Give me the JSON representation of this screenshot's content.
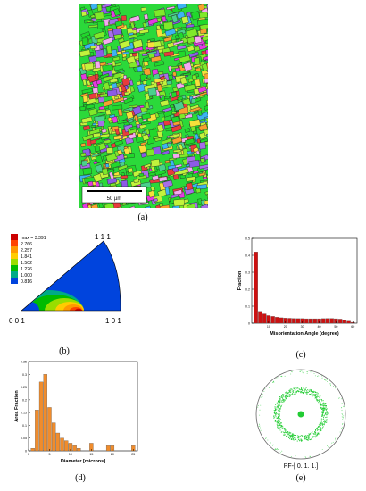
{
  "panel_a": {
    "caption": "(a)",
    "scalebar_label": "50 µm",
    "colors": [
      "#21d82b",
      "#7fe92a",
      "#c2f33c",
      "#8c5be6",
      "#e43ae0",
      "#f5a8f0",
      "#e83c3c",
      "#f9a030",
      "#f7e03a",
      "#3db3f2",
      "#a76de8",
      "#4ad18c"
    ]
  },
  "panel_b": {
    "caption": "(b)",
    "legend": [
      "max = 3.391",
      "2.766",
      "2.257",
      "1.841",
      "1.502",
      "1.226",
      "1.000",
      "0.816"
    ],
    "legend_colors": [
      "#cc0000",
      "#ff4400",
      "#ff9900",
      "#ffcc00",
      "#99dd00",
      "#00bb00",
      "#00aa88",
      "#0044dd"
    ],
    "corner_top": "1 1 1",
    "corner_left": "0 0 1",
    "corner_right": "1 0 1"
  },
  "panel_c": {
    "caption": "(c)",
    "chart_data": {
      "type": "bar",
      "xlabel": "Misorientation Angle (degree)",
      "ylabel": "Fraction",
      "x": [
        2.5,
        5,
        7.5,
        10,
        12.5,
        15,
        17.5,
        20,
        22.5,
        25,
        27.5,
        30,
        32.5,
        35,
        37.5,
        40,
        42.5,
        45,
        47.5,
        50,
        52.5,
        55,
        57.5,
        60
      ],
      "values": [
        0.42,
        0.07,
        0.055,
        0.045,
        0.04,
        0.035,
        0.032,
        0.03,
        0.029,
        0.028,
        0.027,
        0.027,
        0.026,
        0.026,
        0.026,
        0.026,
        0.027,
        0.028,
        0.028,
        0.026,
        0.024,
        0.02,
        0.012,
        0.005
      ],
      "ylim": [
        0,
        0.5
      ],
      "xlim": [
        0,
        62.5
      ],
      "yticks": [
        "0",
        "0.1",
        "0.2",
        "0.3",
        "0.4",
        "0.5"
      ],
      "xticks": [
        "10",
        "20",
        "30",
        "40",
        "50",
        "60"
      ],
      "color": "#cc1111"
    }
  },
  "panel_d": {
    "caption": "(d)",
    "chart_data": {
      "type": "bar",
      "xlabel": "Diameter [microns]",
      "ylabel": "Area Fraction",
      "x": [
        1,
        2,
        3,
        4,
        5,
        6,
        7,
        8,
        9,
        10,
        11,
        12,
        13,
        14,
        15,
        16,
        17,
        18,
        19,
        20,
        21,
        22,
        23,
        24,
        25
      ],
      "values": [
        0.01,
        0.16,
        0.27,
        0.3,
        0.17,
        0.11,
        0.07,
        0.05,
        0.04,
        0.03,
        0.02,
        0.01,
        0.0,
        0.0,
        0.03,
        0.0,
        0.0,
        0.0,
        0.02,
        0.02,
        0.0,
        0.0,
        0.0,
        0.0,
        0.02
      ],
      "ylim": [
        0,
        0.35
      ],
      "xlim": [
        0,
        26
      ],
      "yticks": [
        "0",
        "0.05",
        "0.1",
        "0.15",
        "0.2",
        "0.25",
        "0.3",
        "0.35"
      ],
      "xticks": [
        "0",
        "5",
        "10",
        "15",
        "20",
        "25"
      ],
      "color": "#f08c2c"
    }
  },
  "panel_e": {
    "caption": "(e)",
    "label": "PF-[ 0. 1. 1.]",
    "color": "#22cc33"
  }
}
